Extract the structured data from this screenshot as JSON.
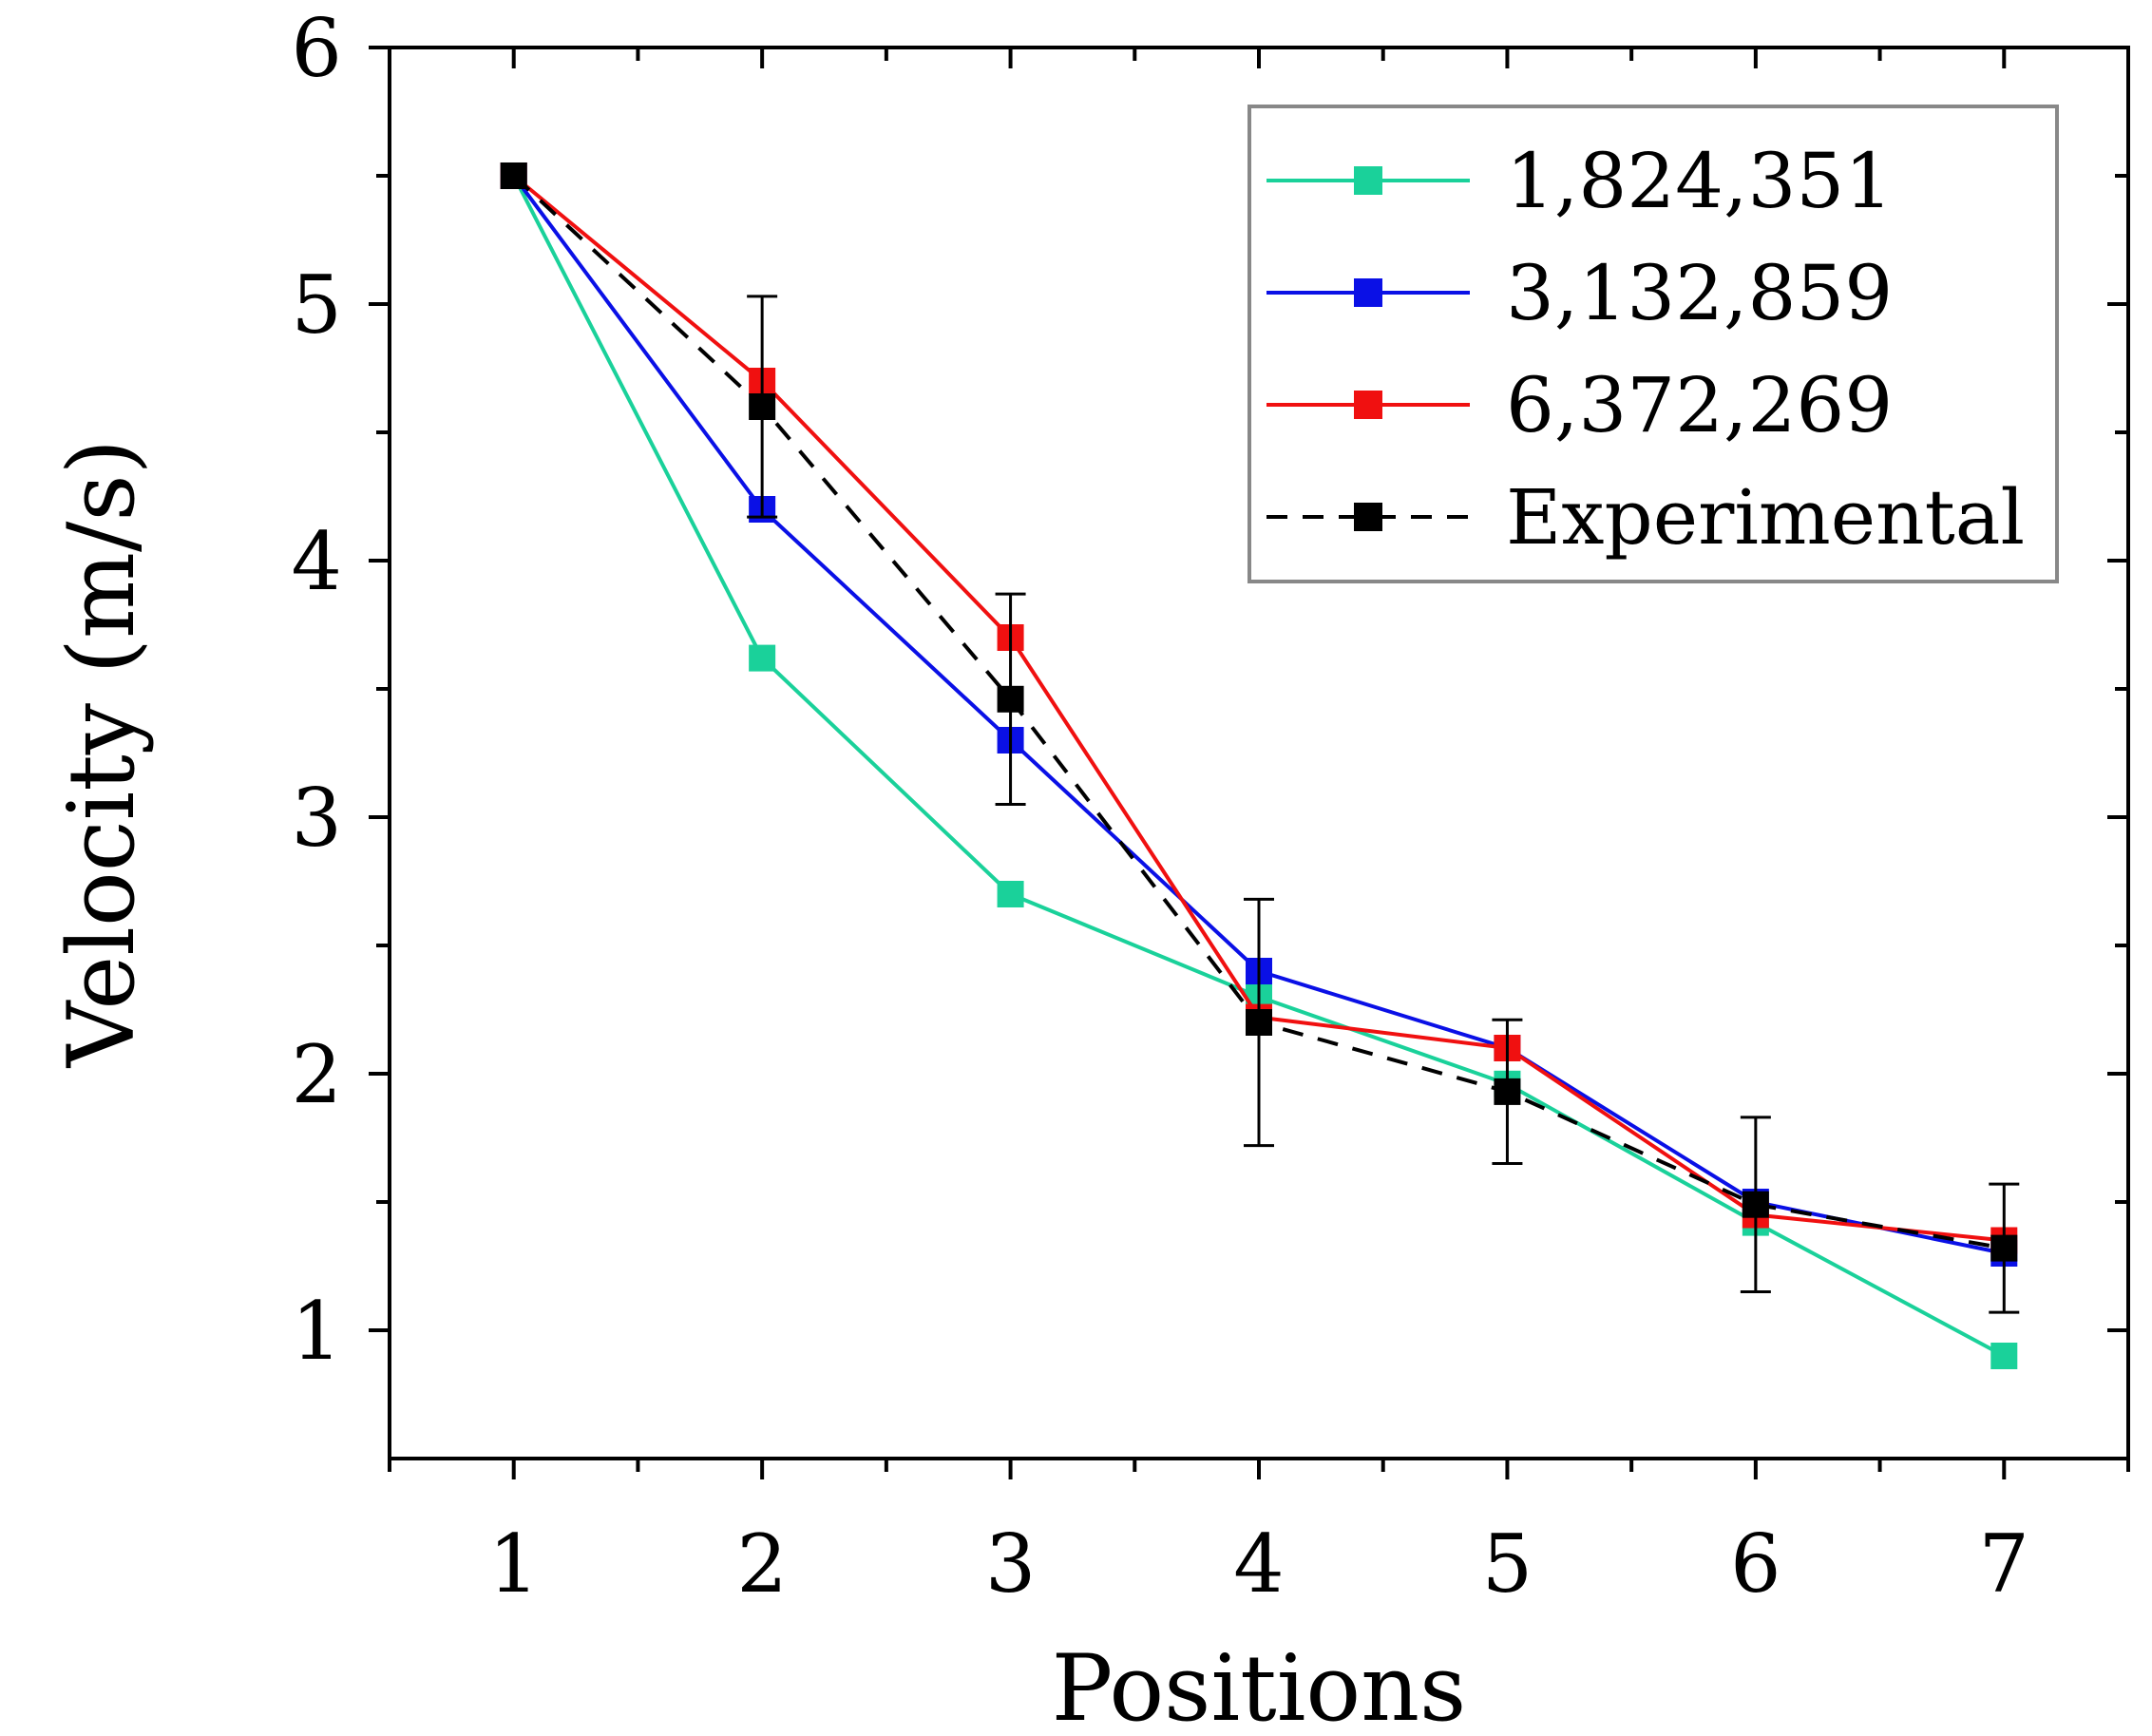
{
  "chart_data": {
    "type": "line",
    "xlabel": "Positions",
    "ylabel": "Velocity (m/s)",
    "x": [
      1,
      2,
      3,
      4,
      5,
      6,
      7
    ],
    "xlim": [
      0.5,
      7.5
    ],
    "ylim": [
      0.5,
      6
    ],
    "xticks": [
      "1",
      "2",
      "3",
      "4",
      "5",
      "6",
      "7"
    ],
    "yticks": [
      "1",
      "2",
      "3",
      "4",
      "5",
      "6"
    ],
    "grid": false,
    "legend_position": "top-right",
    "series": [
      {
        "name": "1,824,351",
        "color": "#1ad19a",
        "dashed": false,
        "values": [
          5.5,
          3.62,
          2.7,
          2.3,
          1.96,
          1.42,
          0.9
        ]
      },
      {
        "name": "3,132,859",
        "color": "#0a10e6",
        "dashed": false,
        "values": [
          5.5,
          4.2,
          3.3,
          2.4,
          2.1,
          1.5,
          1.3
        ]
      },
      {
        "name": "6,372,269",
        "color": "#f01010",
        "dashed": false,
        "values": [
          5.5,
          4.7,
          3.7,
          2.22,
          2.1,
          1.45,
          1.35
        ]
      },
      {
        "name": "Experimental",
        "color": "#000000",
        "dashed": true,
        "values": [
          5.5,
          4.6,
          3.46,
          2.2,
          1.93,
          1.49,
          1.32
        ],
        "error": [
          0,
          0.43,
          0.41,
          0.48,
          0.28,
          0.34,
          0.25
        ]
      }
    ]
  }
}
